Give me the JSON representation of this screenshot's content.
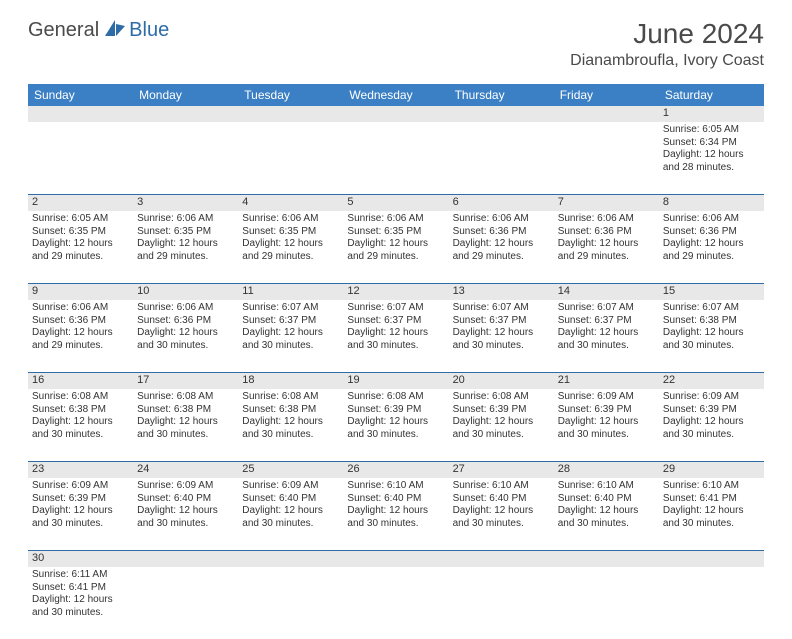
{
  "brand": {
    "part1": "General",
    "part2": "Blue"
  },
  "title": "June 2024",
  "location": "Dianambroufla, Ivory Coast",
  "colors": {
    "header_bg": "#3b7fc4",
    "header_text": "#ffffff",
    "row_divider": "#2e6ca8",
    "daynum_bg": "#e8e8e8",
    "text": "#333333",
    "brand_gray": "#4a4a4a",
    "brand_blue": "#2e6ca8"
  },
  "day_headers": [
    "Sunday",
    "Monday",
    "Tuesday",
    "Wednesday",
    "Thursday",
    "Friday",
    "Saturday"
  ],
  "weeks": [
    [
      null,
      null,
      null,
      null,
      null,
      null,
      {
        "n": "1",
        "sr": "Sunrise: 6:05 AM",
        "ss": "Sunset: 6:34 PM",
        "d1": "Daylight: 12 hours",
        "d2": "and 28 minutes."
      }
    ],
    [
      {
        "n": "2",
        "sr": "Sunrise: 6:05 AM",
        "ss": "Sunset: 6:35 PM",
        "d1": "Daylight: 12 hours",
        "d2": "and 29 minutes."
      },
      {
        "n": "3",
        "sr": "Sunrise: 6:06 AM",
        "ss": "Sunset: 6:35 PM",
        "d1": "Daylight: 12 hours",
        "d2": "and 29 minutes."
      },
      {
        "n": "4",
        "sr": "Sunrise: 6:06 AM",
        "ss": "Sunset: 6:35 PM",
        "d1": "Daylight: 12 hours",
        "d2": "and 29 minutes."
      },
      {
        "n": "5",
        "sr": "Sunrise: 6:06 AM",
        "ss": "Sunset: 6:35 PM",
        "d1": "Daylight: 12 hours",
        "d2": "and 29 minutes."
      },
      {
        "n": "6",
        "sr": "Sunrise: 6:06 AM",
        "ss": "Sunset: 6:36 PM",
        "d1": "Daylight: 12 hours",
        "d2": "and 29 minutes."
      },
      {
        "n": "7",
        "sr": "Sunrise: 6:06 AM",
        "ss": "Sunset: 6:36 PM",
        "d1": "Daylight: 12 hours",
        "d2": "and 29 minutes."
      },
      {
        "n": "8",
        "sr": "Sunrise: 6:06 AM",
        "ss": "Sunset: 6:36 PM",
        "d1": "Daylight: 12 hours",
        "d2": "and 29 minutes."
      }
    ],
    [
      {
        "n": "9",
        "sr": "Sunrise: 6:06 AM",
        "ss": "Sunset: 6:36 PM",
        "d1": "Daylight: 12 hours",
        "d2": "and 29 minutes."
      },
      {
        "n": "10",
        "sr": "Sunrise: 6:06 AM",
        "ss": "Sunset: 6:36 PM",
        "d1": "Daylight: 12 hours",
        "d2": "and 30 minutes."
      },
      {
        "n": "11",
        "sr": "Sunrise: 6:07 AM",
        "ss": "Sunset: 6:37 PM",
        "d1": "Daylight: 12 hours",
        "d2": "and 30 minutes."
      },
      {
        "n": "12",
        "sr": "Sunrise: 6:07 AM",
        "ss": "Sunset: 6:37 PM",
        "d1": "Daylight: 12 hours",
        "d2": "and 30 minutes."
      },
      {
        "n": "13",
        "sr": "Sunrise: 6:07 AM",
        "ss": "Sunset: 6:37 PM",
        "d1": "Daylight: 12 hours",
        "d2": "and 30 minutes."
      },
      {
        "n": "14",
        "sr": "Sunrise: 6:07 AM",
        "ss": "Sunset: 6:37 PM",
        "d1": "Daylight: 12 hours",
        "d2": "and 30 minutes."
      },
      {
        "n": "15",
        "sr": "Sunrise: 6:07 AM",
        "ss": "Sunset: 6:38 PM",
        "d1": "Daylight: 12 hours",
        "d2": "and 30 minutes."
      }
    ],
    [
      {
        "n": "16",
        "sr": "Sunrise: 6:08 AM",
        "ss": "Sunset: 6:38 PM",
        "d1": "Daylight: 12 hours",
        "d2": "and 30 minutes."
      },
      {
        "n": "17",
        "sr": "Sunrise: 6:08 AM",
        "ss": "Sunset: 6:38 PM",
        "d1": "Daylight: 12 hours",
        "d2": "and 30 minutes."
      },
      {
        "n": "18",
        "sr": "Sunrise: 6:08 AM",
        "ss": "Sunset: 6:38 PM",
        "d1": "Daylight: 12 hours",
        "d2": "and 30 minutes."
      },
      {
        "n": "19",
        "sr": "Sunrise: 6:08 AM",
        "ss": "Sunset: 6:39 PM",
        "d1": "Daylight: 12 hours",
        "d2": "and 30 minutes."
      },
      {
        "n": "20",
        "sr": "Sunrise: 6:08 AM",
        "ss": "Sunset: 6:39 PM",
        "d1": "Daylight: 12 hours",
        "d2": "and 30 minutes."
      },
      {
        "n": "21",
        "sr": "Sunrise: 6:09 AM",
        "ss": "Sunset: 6:39 PM",
        "d1": "Daylight: 12 hours",
        "d2": "and 30 minutes."
      },
      {
        "n": "22",
        "sr": "Sunrise: 6:09 AM",
        "ss": "Sunset: 6:39 PM",
        "d1": "Daylight: 12 hours",
        "d2": "and 30 minutes."
      }
    ],
    [
      {
        "n": "23",
        "sr": "Sunrise: 6:09 AM",
        "ss": "Sunset: 6:39 PM",
        "d1": "Daylight: 12 hours",
        "d2": "and 30 minutes."
      },
      {
        "n": "24",
        "sr": "Sunrise: 6:09 AM",
        "ss": "Sunset: 6:40 PM",
        "d1": "Daylight: 12 hours",
        "d2": "and 30 minutes."
      },
      {
        "n": "25",
        "sr": "Sunrise: 6:09 AM",
        "ss": "Sunset: 6:40 PM",
        "d1": "Daylight: 12 hours",
        "d2": "and 30 minutes."
      },
      {
        "n": "26",
        "sr": "Sunrise: 6:10 AM",
        "ss": "Sunset: 6:40 PM",
        "d1": "Daylight: 12 hours",
        "d2": "and 30 minutes."
      },
      {
        "n": "27",
        "sr": "Sunrise: 6:10 AM",
        "ss": "Sunset: 6:40 PM",
        "d1": "Daylight: 12 hours",
        "d2": "and 30 minutes."
      },
      {
        "n": "28",
        "sr": "Sunrise: 6:10 AM",
        "ss": "Sunset: 6:40 PM",
        "d1": "Daylight: 12 hours",
        "d2": "and 30 minutes."
      },
      {
        "n": "29",
        "sr": "Sunrise: 6:10 AM",
        "ss": "Sunset: 6:41 PM",
        "d1": "Daylight: 12 hours",
        "d2": "and 30 minutes."
      }
    ],
    [
      {
        "n": "30",
        "sr": "Sunrise: 6:11 AM",
        "ss": "Sunset: 6:41 PM",
        "d1": "Daylight: 12 hours",
        "d2": "and 30 minutes."
      },
      null,
      null,
      null,
      null,
      null,
      null
    ]
  ]
}
